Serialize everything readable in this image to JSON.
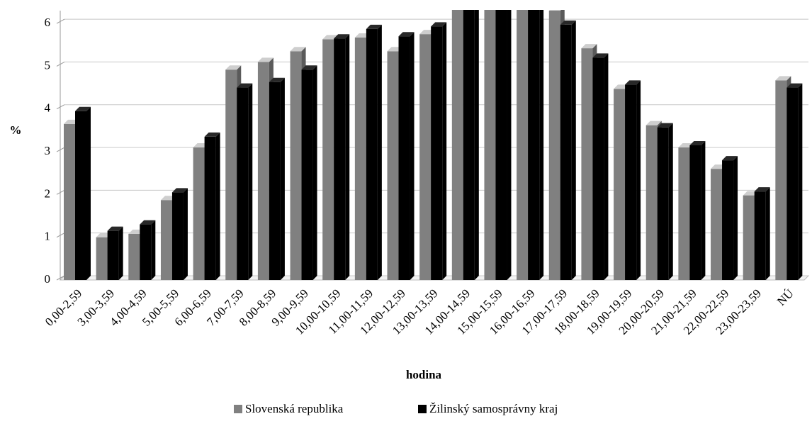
{
  "chart_data": {
    "type": "bar3d",
    "categories": [
      "0,00-2,59",
      "3,00-3,59",
      "4,00-4,59",
      "5,00-5,59",
      "6,00-6,59",
      "7,00-7,59",
      "8,00-8,59",
      "9,00-9,59",
      "10,00-10,59",
      "11,00-11,59",
      "12,00-12,59",
      "13,00-13,59",
      "14,00-14,59",
      "15,00-15,59",
      "16,00-16,59",
      "17,00-17,59",
      "18,00-18,59",
      "19,00-19,59",
      "20,00-20,59",
      "21,00-21,59",
      "22,00-22,59",
      "23,00-23,59",
      "NÚ"
    ],
    "series": [
      {
        "name": "Slovenská republika",
        "color": "#808080",
        "values": [
          3.65,
          1.0,
          1.08,
          1.87,
          3.1,
          4.92,
          5.1,
          5.35,
          5.63,
          5.67,
          5.35,
          5.75,
          6.6,
          6.9,
          6.7,
          6.3,
          5.42,
          4.47,
          3.62,
          3.1,
          2.6,
          1.98,
          4.67
        ]
      },
      {
        "name": "Žilinský samosprávny kraj",
        "color": "#000000",
        "values": [
          3.95,
          1.15,
          1.3,
          2.05,
          3.35,
          4.5,
          4.63,
          4.92,
          5.65,
          5.87,
          5.7,
          5.93,
          6.8,
          6.7,
          6.6,
          5.97,
          5.2,
          4.57,
          3.57,
          3.15,
          2.8,
          2.07,
          4.5
        ]
      }
    ],
    "ylabel": "%",
    "xlabel": "hodina",
    "ylim": [
      0,
      6.3
    ],
    "yticks": [
      0,
      1,
      2,
      3,
      4,
      5,
      6
    ],
    "grid": true
  }
}
